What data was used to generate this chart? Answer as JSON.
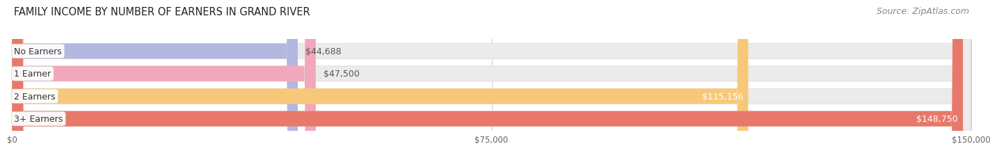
{
  "title": "FAMILY INCOME BY NUMBER OF EARNERS IN GRAND RIVER",
  "source": "Source: ZipAtlas.com",
  "categories": [
    "No Earners",
    "1 Earner",
    "2 Earners",
    "3+ Earners"
  ],
  "values": [
    44688,
    47500,
    115156,
    148750
  ],
  "labels": [
    "$44,688",
    "$47,500",
    "$115,156",
    "$148,750"
  ],
  "bar_colors": [
    "#b4b8e0",
    "#f2a8bc",
    "#f8c87a",
    "#e8796a"
  ],
  "label_colors": [
    "#555555",
    "#555555",
    "#ffffff",
    "#ffffff"
  ],
  "max_value": 150000,
  "x_ticks": [
    0,
    75000,
    150000
  ],
  "x_tick_labels": [
    "$0",
    "$75,000",
    "$150,000"
  ],
  "title_fontsize": 10.5,
  "source_fontsize": 9,
  "bar_label_fontsize": 9,
  "category_fontsize": 9,
  "background_color": "#ffffff",
  "plot_bg_color": "#f5f5f5",
  "row_bg_color": "#ebebeb"
}
